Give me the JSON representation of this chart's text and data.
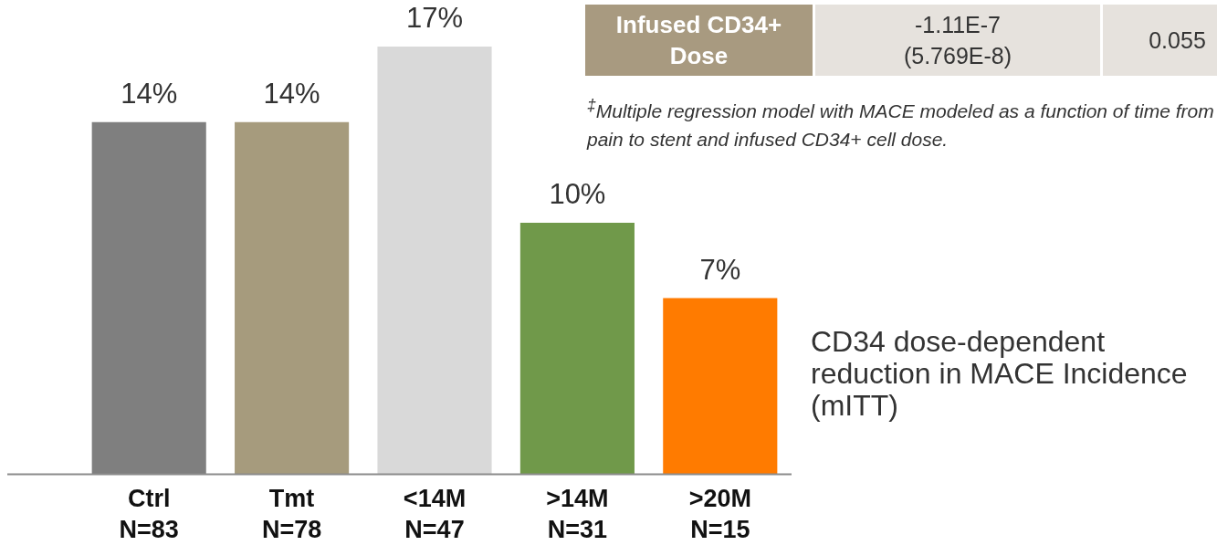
{
  "chart_data": {
    "type": "bar",
    "title": "CD34 dose-dependent reduction in MACE Incidence (mITT)",
    "categories": [
      "Ctrl\nN=83",
      "Tmt\nN=78",
      "<14M\nN=47",
      ">14M\nN=31",
      ">20M\nN=15"
    ],
    "values": [
      14,
      14,
      17,
      10,
      7
    ],
    "value_labels": [
      "14%",
      "14%",
      "17%",
      "10%",
      "7%"
    ],
    "colors": [
      "#7f7f7f",
      "#a69b7d",
      "#d9d9d9",
      "#70994a",
      "#ff7b00"
    ],
    "tick_labels": "x",
    "annotations": [
      "Infused CD34+\nDose",
      "-1.11E-7\n(5.769E-8)",
      "0.055",
      "$^{‡}$Multiple regression model with MACE modeled as a function of time from pain to stent and infused CD34+ cell dose."
    ]
  }
}
